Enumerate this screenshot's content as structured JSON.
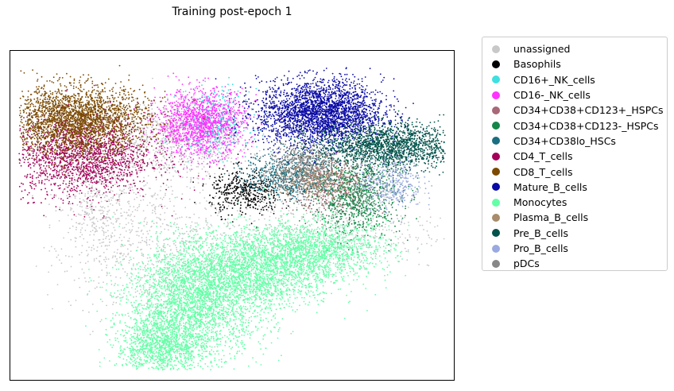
{
  "chart_data": {
    "type": "scatter",
    "title": "Training post-epoch 1",
    "xlabel": "",
    "ylabel": "",
    "axes_ticks": false,
    "grid": false,
    "legend_placement": "outside-right",
    "series": [
      {
        "name": "unassigned",
        "color": "#c8c8c8",
        "clusters": [
          {
            "cx": 0.36,
            "cy": 0.72,
            "sx": 0.09,
            "sy": 0.06,
            "n": 700
          },
          {
            "cx": 0.2,
            "cy": 0.52,
            "sx": 0.05,
            "sy": 0.1,
            "n": 500
          },
          {
            "cx": 0.35,
            "cy": 0.4,
            "sx": 0.1,
            "sy": 0.12,
            "n": 600
          },
          {
            "cx": 0.7,
            "cy": 0.45,
            "sx": 0.14,
            "sy": 0.06,
            "n": 500
          },
          {
            "cx": 0.78,
            "cy": 0.58,
            "sx": 0.06,
            "sy": 0.05,
            "n": 200
          }
        ]
      },
      {
        "name": "Basophils",
        "color": "#000000",
        "clusters": [
          {
            "cx": 0.53,
            "cy": 0.57,
            "sx": 0.04,
            "sy": 0.035,
            "n": 450
          }
        ]
      },
      {
        "name": "CD16+_NK_cells",
        "color": "#3ee0e0",
        "clusters": [
          {
            "cx": 0.46,
            "cy": 0.78,
            "sx": 0.04,
            "sy": 0.05,
            "n": 400
          }
        ]
      },
      {
        "name": "CD16-_NK_cells",
        "color": "#ff33ff",
        "clusters": [
          {
            "cx": 0.43,
            "cy": 0.78,
            "sx": 0.05,
            "sy": 0.05,
            "n": 1400
          }
        ]
      },
      {
        "name": "CD34+CD38+CD123+_HSPCs",
        "color": "#a86878",
        "clusters": [
          {
            "cx": 0.72,
            "cy": 0.59,
            "sx": 0.05,
            "sy": 0.04,
            "n": 450
          }
        ]
      },
      {
        "name": "CD34+CD38+CD123-_HSPCs",
        "color": "#148648",
        "clusters": [
          {
            "cx": 0.78,
            "cy": 0.56,
            "sx": 0.05,
            "sy": 0.06,
            "n": 900
          }
        ]
      },
      {
        "name": "CD34+CD38lo_HSCs",
        "color": "#1a6e80",
        "clusters": [
          {
            "cx": 0.63,
            "cy": 0.62,
            "sx": 0.05,
            "sy": 0.035,
            "n": 600
          }
        ]
      },
      {
        "name": "CD4_T_cells",
        "color": "#a4005a",
        "clusters": [
          {
            "cx": 0.16,
            "cy": 0.68,
            "sx": 0.08,
            "sy": 0.06,
            "n": 1800
          }
        ]
      },
      {
        "name": "CD8_T_cells",
        "color": "#7b4a00",
        "clusters": [
          {
            "cx": 0.15,
            "cy": 0.79,
            "sx": 0.08,
            "sy": 0.05,
            "n": 2600
          }
        ]
      },
      {
        "name": "Mature_B_cells",
        "color": "#0a0aa6",
        "clusters": [
          {
            "cx": 0.7,
            "cy": 0.81,
            "sx": 0.07,
            "sy": 0.05,
            "n": 2800
          }
        ]
      },
      {
        "name": "Monocytes",
        "color": "#63ffa6",
        "clusters": [
          {
            "cx": 0.42,
            "cy": 0.24,
            "sx": 0.08,
            "sy": 0.08,
            "n": 2600
          },
          {
            "cx": 0.55,
            "cy": 0.34,
            "sx": 0.09,
            "sy": 0.06,
            "n": 2200
          },
          {
            "cx": 0.34,
            "cy": 0.1,
            "sx": 0.05,
            "sy": 0.05,
            "n": 1200
          },
          {
            "cx": 0.7,
            "cy": 0.4,
            "sx": 0.08,
            "sy": 0.04,
            "n": 1200
          }
        ]
      },
      {
        "name": "Plasma_B_cells",
        "color": "#a88c6c",
        "clusters": [
          {
            "cx": 0.68,
            "cy": 0.61,
            "sx": 0.04,
            "sy": 0.03,
            "n": 350
          }
        ]
      },
      {
        "name": "Pre_B_cells",
        "color": "#00534a",
        "clusters": [
          {
            "cx": 0.85,
            "cy": 0.71,
            "sx": 0.08,
            "sy": 0.035,
            "n": 1700
          }
        ]
      },
      {
        "name": "Pro_B_cells",
        "color": "#9aaae0",
        "clusters": [
          {
            "cx": 0.86,
            "cy": 0.6,
            "sx": 0.035,
            "sy": 0.04,
            "n": 350
          }
        ]
      },
      {
        "name": "pDCs",
        "color": "#878787",
        "clusters": [
          {
            "cx": 0.66,
            "cy": 0.66,
            "sx": 0.04,
            "sy": 0.03,
            "n": 350
          }
        ]
      }
    ]
  }
}
